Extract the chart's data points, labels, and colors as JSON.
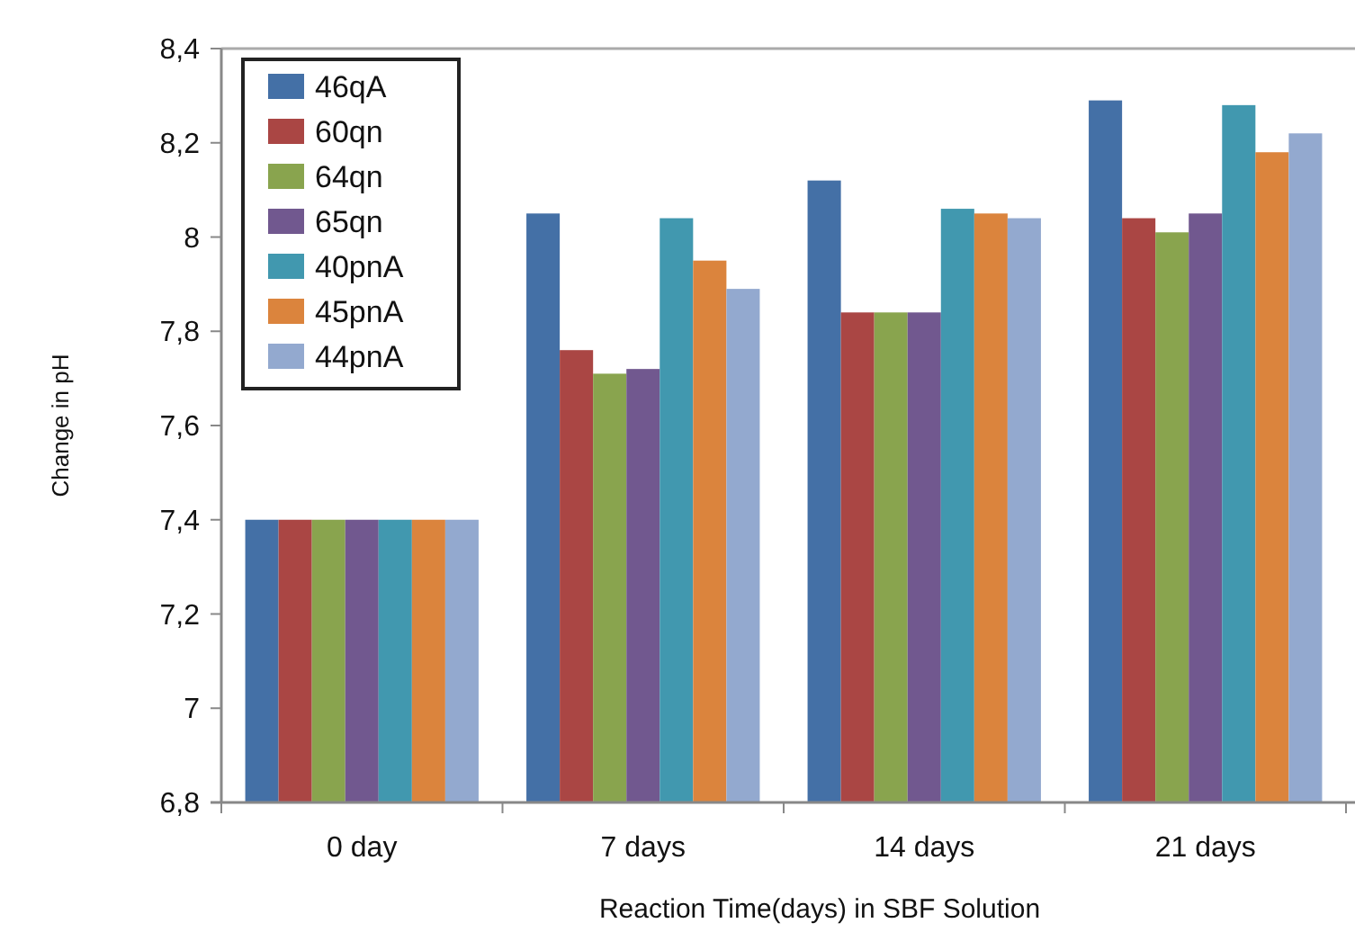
{
  "chart_data": {
    "type": "bar",
    "xlabel": "Reaction Time(days) in SBF Solution",
    "ylabel": "Change in pH",
    "categories": [
      "0 day",
      "7 days",
      "14 days",
      "21 days"
    ],
    "series": [
      {
        "name": "46qA",
        "color": "#4470a6",
        "values": [
          7.4,
          8.05,
          8.12,
          8.29
        ]
      },
      {
        "name": "60qn",
        "color": "#aa4644",
        "values": [
          7.4,
          7.76,
          7.84,
          8.04
        ]
      },
      {
        "name": "64qn",
        "color": "#89a44e",
        "values": [
          7.4,
          7.71,
          7.84,
          8.01
        ]
      },
      {
        "name": "65qn",
        "color": "#71588f",
        "values": [
          7.4,
          7.72,
          7.84,
          8.05
        ]
      },
      {
        "name": "40pnA",
        "color": "#4198af",
        "values": [
          7.4,
          8.04,
          8.06,
          8.28
        ]
      },
      {
        "name": "45pnA",
        "color": "#db843d",
        "values": [
          7.4,
          7.95,
          8.05,
          8.18
        ]
      },
      {
        "name": "44pnA",
        "color": "#93a9cf",
        "values": [
          7.4,
          7.89,
          8.04,
          8.22
        ]
      }
    ],
    "ylim": [
      6.8,
      8.4
    ],
    "yticks": [
      {
        "value": 6.8,
        "label": "6,8"
      },
      {
        "value": 7,
        "label": "7"
      },
      {
        "value": 7.2,
        "label": "7,2"
      },
      {
        "value": 7.4,
        "label": "7,4"
      },
      {
        "value": 7.6,
        "label": "7,6"
      },
      {
        "value": 7.8,
        "label": "7,8"
      },
      {
        "value": 8,
        "label": "8"
      },
      {
        "value": 8.2,
        "label": "8,2"
      },
      {
        "value": 8.4,
        "label": "8,4"
      }
    ],
    "legend": "top left",
    "grid": false
  }
}
